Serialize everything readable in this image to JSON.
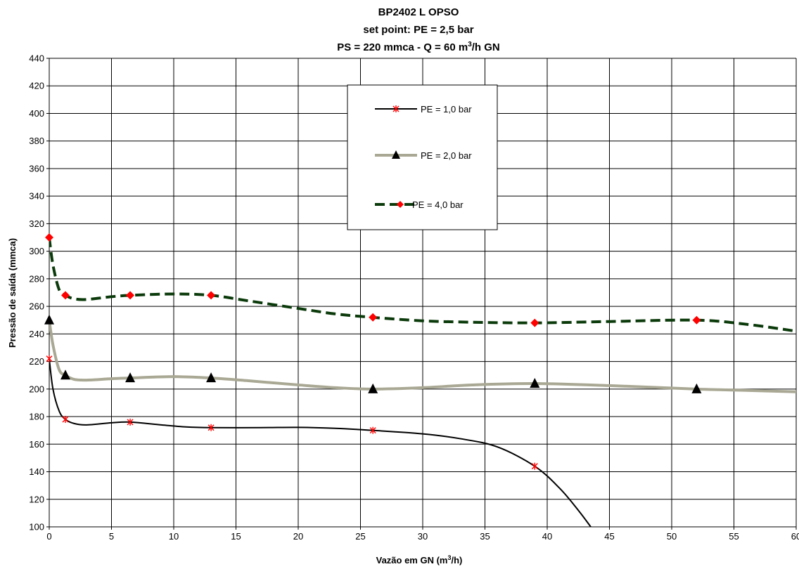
{
  "chart_data": {
    "type": "line",
    "title_lines": [
      "BP2402 L OPSO",
      "set point: PE = 2,5 bar",
      "PS = 220 mmca - Q = 60 m",
      "3",
      "/h GN"
    ],
    "xlabel": "Vazão em GN (m",
    "xlabel_sup": "3",
    "xlabel_tail": "/h)",
    "ylabel": "Pressão de saída (mmca)",
    "xlim": [
      0,
      60
    ],
    "ylim": [
      100,
      440
    ],
    "xticks": [
      "0",
      "5",
      "10",
      "15",
      "20",
      "25",
      "30",
      "35",
      "40",
      "45",
      "50",
      "55",
      "60"
    ],
    "yticks": [
      "100",
      "120",
      "140",
      "160",
      "180",
      "200",
      "220",
      "240",
      "260",
      "280",
      "300",
      "320",
      "340",
      "360",
      "380",
      "400",
      "420",
      "440"
    ],
    "grid": true,
    "legend_position": "top-center",
    "series": [
      {
        "name": "PE = 1,0 bar",
        "color": "#000000",
        "marker": "asterisk",
        "marker_color": "#ff0000",
        "points": [
          [
            0,
            222
          ],
          [
            1.3,
            178
          ],
          [
            6.5,
            176
          ],
          [
            13,
            172
          ],
          [
            26,
            170
          ],
          [
            39,
            144
          ]
        ],
        "curve": [
          [
            0,
            222
          ],
          [
            0.3,
            200
          ],
          [
            0.8,
            184
          ],
          [
            1.3,
            178
          ],
          [
            2,
            175
          ],
          [
            3,
            174
          ],
          [
            5,
            175.5
          ],
          [
            6.5,
            176
          ],
          [
            9,
            174
          ],
          [
            11,
            172.5
          ],
          [
            13,
            172
          ],
          [
            17,
            172
          ],
          [
            20,
            172.2
          ],
          [
            23,
            171.5
          ],
          [
            26,
            170
          ],
          [
            30,
            167.5
          ],
          [
            33,
            164
          ],
          [
            36,
            158
          ],
          [
            39,
            144
          ],
          [
            41,
            128
          ],
          [
            42.5,
            112
          ],
          [
            43.5,
            100
          ]
        ]
      },
      {
        "name": "PE = 2,0 bar",
        "color": "#a9a894",
        "marker": "triangle",
        "marker_color": "#000000",
        "points": [
          [
            0,
            250
          ],
          [
            1.3,
            210
          ],
          [
            6.5,
            208
          ],
          [
            13,
            208
          ],
          [
            26,
            200
          ],
          [
            39,
            204
          ],
          [
            52,
            200
          ]
        ],
        "curve": [
          [
            0,
            250
          ],
          [
            0.3,
            232
          ],
          [
            0.8,
            214
          ],
          [
            1.3,
            210
          ],
          [
            2,
            207
          ],
          [
            3,
            206.5
          ],
          [
            5,
            207.5
          ],
          [
            6.5,
            208
          ],
          [
            10,
            209
          ],
          [
            13,
            208
          ],
          [
            16,
            206
          ],
          [
            20,
            203
          ],
          [
            23,
            201
          ],
          [
            26,
            200
          ],
          [
            30,
            201
          ],
          [
            34,
            203
          ],
          [
            39,
            204
          ],
          [
            45,
            202.5
          ],
          [
            52,
            200
          ],
          [
            56,
            199
          ],
          [
            60,
            198
          ]
        ]
      },
      {
        "name": "PE = 4,0 bar",
        "color": "#0b3a0b",
        "marker": "diamond",
        "marker_color": "#ff0000",
        "points": [
          [
            0,
            310
          ],
          [
            1.3,
            268
          ],
          [
            6.5,
            268
          ],
          [
            13,
            268
          ],
          [
            26,
            252
          ],
          [
            39,
            248
          ],
          [
            52,
            250
          ]
        ],
        "curve": [
          [
            0,
            310
          ],
          [
            0.3,
            290
          ],
          [
            0.8,
            272
          ],
          [
            1.3,
            268
          ],
          [
            2,
            265.5
          ],
          [
            3,
            265
          ],
          [
            5,
            267
          ],
          [
            6.5,
            268
          ],
          [
            10,
            269
          ],
          [
            13,
            268
          ],
          [
            16,
            264
          ],
          [
            20,
            258.5
          ],
          [
            23,
            254.5
          ],
          [
            26,
            252
          ],
          [
            30,
            249.5
          ],
          [
            34,
            248.5
          ],
          [
            39,
            248
          ],
          [
            45,
            249
          ],
          [
            52,
            250
          ],
          [
            56,
            247
          ],
          [
            60,
            242
          ]
        ]
      }
    ]
  }
}
